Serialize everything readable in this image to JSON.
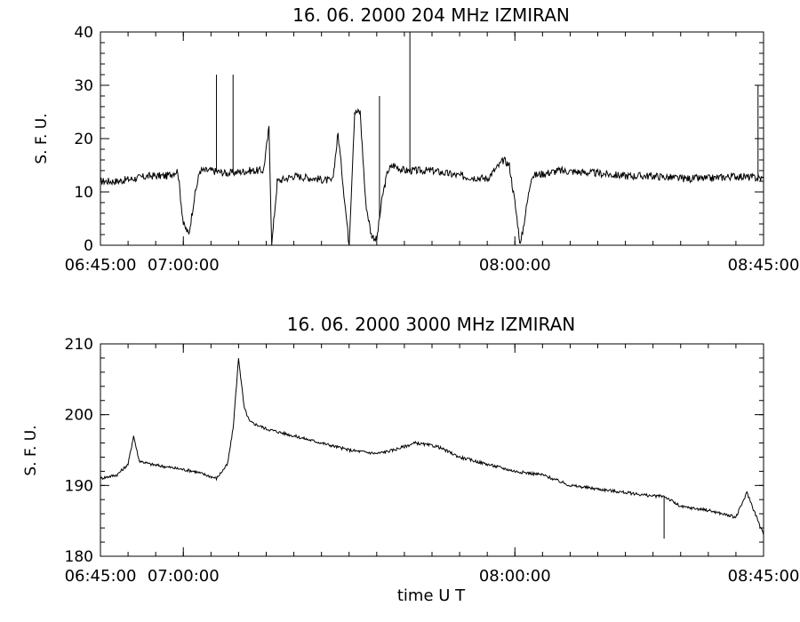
{
  "chart_data": [
    {
      "type": "line",
      "title": "16.  06.  2000    204 MHz    IZMIRAN",
      "xlabel": "",
      "ylabel": "S. F. U.",
      "xlim": [
        "06:45:00",
        "08:45:00"
      ],
      "ylim": [
        0,
        40
      ],
      "x_tick_labels": [
        "06:45:00",
        "07:00:00",
        "08:00:00",
        "08:45:00"
      ],
      "y_tick_labels": [
        "0",
        "10",
        "20",
        "30",
        "40"
      ],
      "grid": false,
      "series": [
        {
          "color": "#000000",
          "x": [
            "06:45:00",
            "06:48:00",
            "06:51:00",
            "06:54:00",
            "06:57:00",
            "06:59:00",
            "07:00:00",
            "07:01:00",
            "07:02:00",
            "07:03:00",
            "07:05:00",
            "07:08:00",
            "07:12:00",
            "07:14:30",
            "07:15:30",
            "07:16:00",
            "07:17:00",
            "07:20:00",
            "07:24:00",
            "07:27:00",
            "07:28:00",
            "07:30:00",
            "07:31:00",
            "07:32:00",
            "07:33:00",
            "07:34:00",
            "07:35:00",
            "07:36:00",
            "07:37:00",
            "07:38:00",
            "07:40:00",
            "07:45:00",
            "07:50:00",
            "07:55:00",
            "07:58:00",
            "07:59:00",
            "08:00:00",
            "08:01:00",
            "08:03:00",
            "08:08:00",
            "08:15:00",
            "08:20:00",
            "08:25:00",
            "08:30:00",
            "08:35:00",
            "08:40:00",
            "08:45:00"
          ],
          "y": [
            12,
            12,
            12.5,
            13,
            13,
            14,
            4,
            2,
            9,
            14,
            14,
            13.5,
            14,
            14,
            22,
            0,
            12,
            13,
            12.5,
            12,
            21,
            0,
            25,
            25,
            8,
            2,
            1,
            9,
            14,
            15,
            14,
            14,
            13,
            12.5,
            16,
            15,
            8,
            0,
            13,
            14,
            13.5,
            13,
            13,
            12.5,
            12.5,
            13,
            12.5
          ]
        }
      ],
      "spikes": [
        {
          "x": "07:06:00",
          "y": 32
        },
        {
          "x": "07:09:00",
          "y": 32
        },
        {
          "x": "07:41:00",
          "y": 40
        },
        {
          "x": "07:35:30",
          "y": 28
        },
        {
          "x": "08:44:00",
          "y": 30
        }
      ]
    },
    {
      "type": "line",
      "title": "16.  06.  2000    3000 MHz    IZMIRAN",
      "xlabel": "time   U T",
      "ylabel": "S. F. U.",
      "xlim": [
        "06:45:00",
        "08:45:00"
      ],
      "ylim": [
        180,
        210
      ],
      "x_tick_labels": [
        "06:45:00",
        "07:00:00",
        "08:00:00",
        "08:45:00"
      ],
      "y_tick_labels": [
        "180",
        "190",
        "200",
        "210"
      ],
      "grid": false,
      "series": [
        {
          "color": "#000000",
          "x": [
            "06:45:00",
            "06:48:00",
            "06:50:00",
            "06:51:00",
            "06:52:00",
            "06:54:00",
            "06:58:00",
            "07:02:00",
            "07:06:00",
            "07:08:00",
            "07:09:00",
            "07:10:00",
            "07:11:00",
            "07:12:00",
            "07:15:00",
            "07:20:00",
            "07:25:00",
            "07:30:00",
            "07:35:00",
            "07:38:00",
            "07:42:00",
            "07:46:00",
            "07:50:00",
            "07:55:00",
            "08:00:00",
            "08:05:00",
            "08:10:00",
            "08:15:00",
            "08:20:00",
            "08:25:00",
            "08:27:00",
            "08:30:00",
            "08:35:00",
            "08:40:00",
            "08:42:00",
            "08:45:00"
          ],
          "y": [
            191,
            191.5,
            193,
            197,
            193.5,
            193,
            192.5,
            192,
            191,
            193,
            198,
            208,
            201,
            199,
            198,
            197,
            196,
            195,
            194.5,
            195,
            196,
            195.5,
            194,
            193,
            192,
            191.5,
            190,
            189.5,
            189,
            188.5,
            188.5,
            187,
            186.5,
            185.5,
            189,
            183
          ]
        }
      ],
      "spikes": [
        {
          "x": "08:27:00",
          "y": 182.5
        }
      ]
    }
  ]
}
